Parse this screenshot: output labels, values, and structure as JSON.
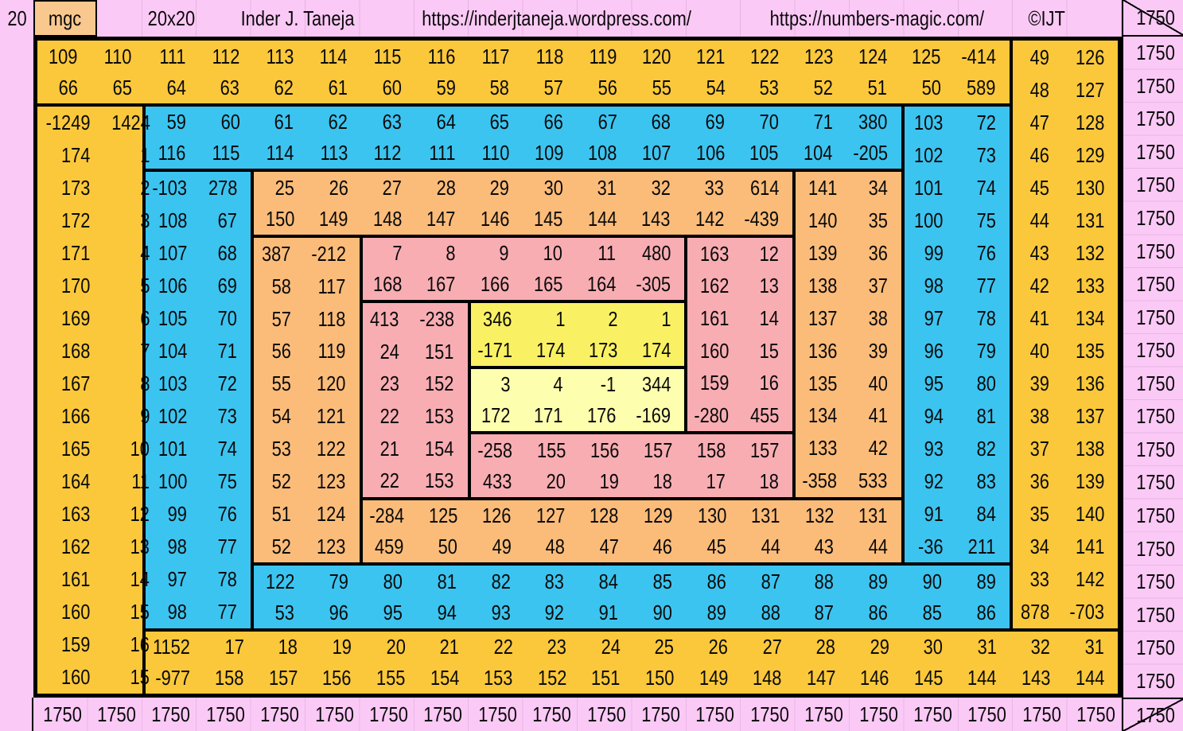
{
  "header": {
    "left_index": "20",
    "badge": "mgc",
    "size": "20x20",
    "author": "Inder J. Taneja",
    "url1": "https://inderjtaneja.wordpress.com/",
    "url2": "https://numbers-magic.com/",
    "copyright": "©IJT"
  },
  "colors": {
    "pink": "#FBC9F6",
    "gold": "#FBC83B",
    "peach": "#F9C88E",
    "blue": "#3CC4F0",
    "orange": "#FBBC7A",
    "salmon": "#F8ADB3",
    "yellow1": "#F9F163",
    "yellow2": "#FDFEAE",
    "line": "#000000"
  },
  "totals": {
    "magic_sum": "1750",
    "diagonal_top": "1750",
    "diagonal_bottom": "1750",
    "rows": [
      "1750",
      "1750",
      "1750",
      "1750",
      "1750",
      "1750",
      "1750",
      "1750",
      "1750",
      "1750",
      "1750",
      "1750",
      "1750",
      "1750",
      "1750",
      "1750",
      "1750",
      "1750",
      "1750",
      "1750"
    ],
    "cols": [
      "1750",
      "1750",
      "1750",
      "1750",
      "1750",
      "1750",
      "1750",
      "1750",
      "1750",
      "1750",
      "1750",
      "1750",
      "1750",
      "1750",
      "1750",
      "1750",
      "1750",
      "1750",
      "1750",
      "1750"
    ]
  },
  "grid": {
    "size": 20,
    "segments": [
      {
        "id": "gold-top",
        "color": "gold",
        "row": 1,
        "col": 1,
        "rows": 2,
        "cols": 18,
        "values": [
          109,
          110,
          111,
          112,
          113,
          114,
          115,
          116,
          117,
          118,
          119,
          120,
          121,
          122,
          123,
          124,
          125,
          -414,
          66,
          65,
          64,
          63,
          62,
          61,
          60,
          59,
          58,
          57,
          56,
          55,
          54,
          53,
          52,
          51,
          50,
          589
        ]
      },
      {
        "id": "gold-right",
        "color": "gold",
        "row": 1,
        "col": 19,
        "rows": 18,
        "cols": 2,
        "values": [
          49,
          126,
          48,
          127,
          47,
          128,
          46,
          129,
          45,
          130,
          44,
          131,
          43,
          132,
          42,
          133,
          41,
          134,
          40,
          135,
          39,
          136,
          38,
          137,
          37,
          138,
          36,
          139,
          35,
          140,
          34,
          141,
          33,
          142,
          878,
          -703
        ]
      },
      {
        "id": "gold-bottom",
        "color": "gold",
        "row": 19,
        "col": 3,
        "rows": 2,
        "cols": 18,
        "values": [
          1152,
          17,
          18,
          19,
          20,
          21,
          22,
          23,
          24,
          25,
          26,
          27,
          28,
          29,
          30,
          31,
          32,
          31,
          -977,
          158,
          157,
          156,
          155,
          154,
          153,
          152,
          151,
          150,
          149,
          148,
          147,
          146,
          145,
          144,
          143,
          144
        ]
      },
      {
        "id": "gold-left",
        "color": "gold",
        "row": 3,
        "col": 1,
        "rows": 18,
        "cols": 2,
        "values": [
          -1249,
          1424,
          174,
          1,
          173,
          2,
          172,
          3,
          171,
          4,
          170,
          5,
          169,
          6,
          168,
          7,
          167,
          8,
          166,
          9,
          165,
          10,
          164,
          11,
          163,
          12,
          162,
          13,
          161,
          14,
          160,
          15,
          159,
          16,
          160,
          15
        ]
      },
      {
        "id": "blue-top",
        "color": "blue",
        "row": 3,
        "col": 3,
        "rows": 2,
        "cols": 14,
        "values": [
          59,
          60,
          61,
          62,
          63,
          64,
          65,
          66,
          67,
          68,
          69,
          70,
          71,
          380,
          116,
          115,
          114,
          113,
          112,
          111,
          110,
          109,
          108,
          107,
          106,
          105,
          104,
          -205
        ]
      },
      {
        "id": "blue-right",
        "color": "blue",
        "row": 3,
        "col": 17,
        "rows": 14,
        "cols": 2,
        "values": [
          103,
          72,
          102,
          73,
          101,
          74,
          100,
          75,
          99,
          76,
          98,
          77,
          97,
          78,
          96,
          79,
          95,
          80,
          94,
          81,
          93,
          82,
          92,
          83,
          91,
          84,
          -36,
          211
        ]
      },
      {
        "id": "blue-bottom",
        "color": "blue",
        "row": 17,
        "col": 5,
        "rows": 2,
        "cols": 14,
        "values": [
          122,
          79,
          80,
          81,
          82,
          83,
          84,
          85,
          86,
          87,
          88,
          89,
          90,
          89,
          53,
          96,
          95,
          94,
          93,
          92,
          91,
          90,
          89,
          88,
          87,
          86,
          85,
          86
        ]
      },
      {
        "id": "blue-left",
        "color": "blue",
        "row": 5,
        "col": 3,
        "rows": 14,
        "cols": 2,
        "values": [
          -103,
          278,
          108,
          67,
          107,
          68,
          106,
          69,
          105,
          70,
          104,
          71,
          103,
          72,
          102,
          73,
          101,
          74,
          100,
          75,
          99,
          76,
          98,
          77,
          97,
          78,
          98,
          77
        ]
      },
      {
        "id": "orange-top",
        "color": "orange",
        "row": 5,
        "col": 5,
        "rows": 2,
        "cols": 10,
        "values": [
          25,
          26,
          27,
          28,
          29,
          30,
          31,
          32,
          33,
          614,
          150,
          149,
          148,
          147,
          146,
          145,
          144,
          143,
          142,
          -439
        ]
      },
      {
        "id": "orange-right",
        "color": "orange",
        "row": 5,
        "col": 15,
        "rows": 10,
        "cols": 2,
        "values": [
          141,
          34,
          140,
          35,
          139,
          36,
          138,
          37,
          137,
          38,
          136,
          39,
          135,
          40,
          134,
          41,
          133,
          42,
          -358,
          533
        ]
      },
      {
        "id": "orange-bottom",
        "color": "orange",
        "row": 15,
        "col": 7,
        "rows": 2,
        "cols": 10,
        "values": [
          -284,
          125,
          126,
          127,
          128,
          129,
          130,
          131,
          132,
          131,
          459,
          50,
          49,
          48,
          47,
          46,
          45,
          44,
          43,
          44
        ]
      },
      {
        "id": "orange-left",
        "color": "orange",
        "row": 7,
        "col": 5,
        "rows": 10,
        "cols": 2,
        "values": [
          387,
          -212,
          58,
          117,
          57,
          118,
          56,
          119,
          55,
          120,
          54,
          121,
          53,
          122,
          52,
          123,
          51,
          124,
          52,
          123
        ]
      },
      {
        "id": "salmon-top",
        "color": "salmon",
        "row": 7,
        "col": 7,
        "rows": 2,
        "cols": 6,
        "values": [
          7,
          8,
          9,
          10,
          11,
          480,
          168,
          167,
          166,
          165,
          164,
          -305
        ]
      },
      {
        "id": "salmon-right",
        "color": "salmon",
        "row": 7,
        "col": 13,
        "rows": 6,
        "cols": 2,
        "values": [
          163,
          12,
          162,
          13,
          161,
          14,
          160,
          15,
          159,
          16,
          -280,
          455
        ]
      },
      {
        "id": "salmon-bottom",
        "color": "salmon",
        "row": 13,
        "col": 9,
        "rows": 2,
        "cols": 6,
        "values": [
          -258,
          155,
          156,
          157,
          158,
          157,
          433,
          20,
          19,
          18,
          17,
          18
        ]
      },
      {
        "id": "salmon-left",
        "color": "salmon",
        "row": 9,
        "col": 7,
        "rows": 6,
        "cols": 2,
        "values": [
          413,
          -238,
          24,
          151,
          23,
          152,
          22,
          153,
          21,
          154,
          22,
          153
        ]
      },
      {
        "id": "yellow-top",
        "color": "yellow1",
        "row": 9,
        "col": 9,
        "rows": 2,
        "cols": 4,
        "values": [
          346,
          1,
          2,
          1,
          -171,
          174,
          173,
          174
        ]
      },
      {
        "id": "yellow-bottom",
        "color": "yellow2",
        "row": 11,
        "col": 9,
        "rows": 2,
        "cols": 4,
        "values": [
          3,
          4,
          -1,
          344,
          172,
          171,
          176,
          -169
        ]
      }
    ]
  }
}
